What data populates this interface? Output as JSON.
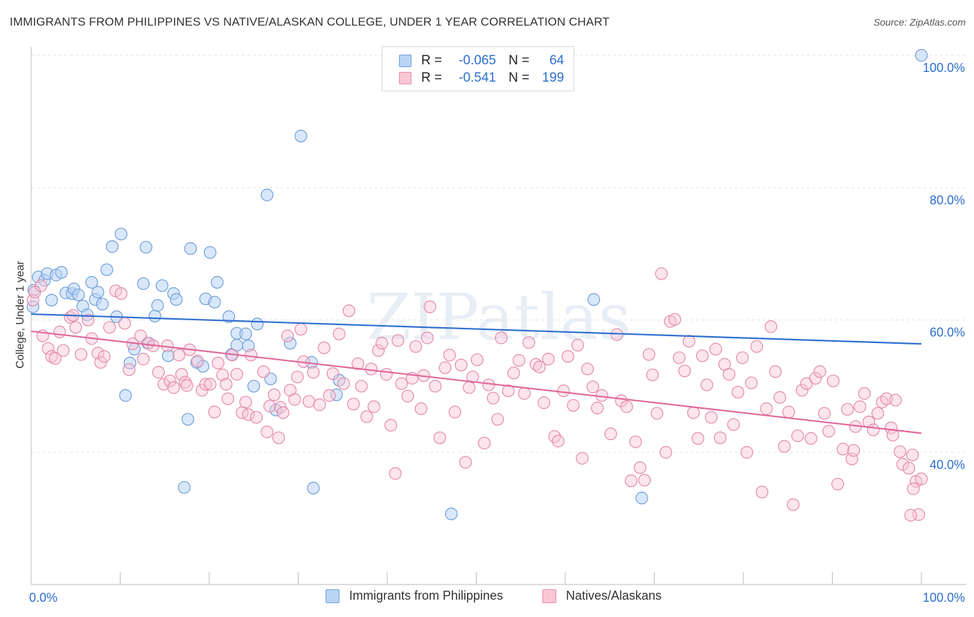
{
  "title": "IMMIGRANTS FROM PHILIPPINES VS NATIVE/ALASKAN COLLEGE, UNDER 1 YEAR CORRELATION CHART",
  "source": "Source: ZipAtlas.com",
  "watermark": "ZIPatlas",
  "legend": {
    "rows": [
      {
        "r_label": "R =",
        "r_value": "-0.065",
        "n_label": "N =",
        "n_value": "64"
      },
      {
        "r_label": "R =",
        "r_value": "-0.541",
        "n_label": "N =",
        "n_value": "199"
      }
    ]
  },
  "bottom_legend": {
    "series1": "Immigrants from Philippines",
    "series2": "Natives/Alaskans"
  },
  "chart_data": {
    "type": "scatter",
    "title": "IMMIGRANTS FROM PHILIPPINES VS NATIVE/ALASKAN COLLEGE, UNDER 1 YEAR CORRELATION CHART",
    "xlabel": "",
    "ylabel": "College, Under 1 year",
    "xlim": [
      0,
      100
    ],
    "ylim": [
      20,
      102
    ],
    "x_tick_labels": [
      "0.0%",
      "100.0%"
    ],
    "y_ticks": [
      40,
      60,
      80,
      100
    ],
    "y_tick_labels": [
      "40.0%",
      "60.0%",
      "80.0%",
      "100.0%"
    ],
    "colors": {
      "series1": "#6f9fd8",
      "series1_fill": "#b9d4f5",
      "series1_line": "#2e6fcf",
      "series2": "#e48aaa",
      "series2_fill": "#f9c6d6",
      "series2_line": "#e0699a",
      "tick_label": "#2e6fcf"
    },
    "series": [
      {
        "name": "Immigrants from Philippines",
        "trend": [
          [
            0,
            60.9
          ],
          [
            100,
            56.4
          ]
        ],
        "points": [
          [
            0.3,
            64.5
          ],
          [
            0.8,
            66.5
          ],
          [
            1.5,
            66.0
          ],
          [
            1.8,
            67.0
          ],
          [
            2.3,
            63.0
          ],
          [
            2.8,
            66.8
          ],
          [
            3.4,
            67.2
          ],
          [
            3.9,
            64.1
          ],
          [
            4.6,
            64.0
          ],
          [
            4.8,
            64.7
          ],
          [
            5.3,
            63.8
          ],
          [
            5.8,
            62.1
          ],
          [
            6.3,
            60.8
          ],
          [
            6.8,
            65.7
          ],
          [
            7.2,
            63.1
          ],
          [
            7.5,
            64.2
          ],
          [
            8.0,
            62.4
          ],
          [
            8.5,
            67.6
          ],
          [
            9.1,
            71.1
          ],
          [
            9.6,
            60.5
          ],
          [
            10.1,
            73.0
          ],
          [
            10.6,
            48.6
          ],
          [
            11.1,
            53.5
          ],
          [
            11.6,
            55.6
          ],
          [
            12.6,
            65.5
          ],
          [
            12.9,
            71.0
          ],
          [
            13.1,
            56.5
          ],
          [
            13.9,
            60.6
          ],
          [
            14.2,
            62.2
          ],
          [
            14.7,
            65.2
          ],
          [
            15.4,
            54.6
          ],
          [
            16.0,
            64.0
          ],
          [
            16.3,
            63.1
          ],
          [
            17.2,
            34.7
          ],
          [
            17.6,
            45.0
          ],
          [
            17.9,
            70.8
          ],
          [
            18.6,
            53.6
          ],
          [
            19.3,
            53.0
          ],
          [
            19.6,
            63.2
          ],
          [
            20.1,
            70.2
          ],
          [
            20.6,
            62.7
          ],
          [
            20.9,
            65.7
          ],
          [
            22.2,
            60.5
          ],
          [
            22.5,
            54.8
          ],
          [
            23.1,
            58.0
          ],
          [
            23.1,
            56.2
          ],
          [
            24.1,
            57.9
          ],
          [
            24.4,
            56.1
          ],
          [
            25.0,
            50.0
          ],
          [
            25.4,
            59.4
          ],
          [
            26.5,
            78.9
          ],
          [
            26.9,
            51.1
          ],
          [
            27.5,
            46.4
          ],
          [
            29.1,
            56.5
          ],
          [
            30.3,
            87.8
          ],
          [
            31.5,
            53.6
          ],
          [
            31.7,
            34.6
          ],
          [
            34.3,
            48.7
          ],
          [
            34.6,
            50.9
          ],
          [
            47.2,
            30.7
          ],
          [
            63.2,
            63.1
          ],
          [
            68.6,
            33.1
          ],
          [
            100.0,
            100.0
          ],
          [
            0.2,
            62.0
          ]
        ]
      },
      {
        "name": "Natives/Alaskans",
        "trend": [
          [
            0,
            58.3
          ],
          [
            100,
            42.9
          ]
        ],
        "points": [
          [
            0.2,
            63.0
          ],
          [
            0.4,
            64.2
          ],
          [
            1.1,
            65.2
          ],
          [
            1.3,
            57.6
          ],
          [
            1.9,
            55.7
          ],
          [
            2.3,
            54.5
          ],
          [
            2.7,
            54.2
          ],
          [
            3.2,
            58.2
          ],
          [
            3.6,
            55.4
          ],
          [
            4.4,
            60.4
          ],
          [
            4.7,
            60.7
          ],
          [
            5.0,
            58.9
          ],
          [
            5.6,
            54.8
          ],
          [
            6.4,
            60.0
          ],
          [
            6.8,
            57.2
          ],
          [
            7.5,
            55.0
          ],
          [
            7.8,
            53.6
          ],
          [
            8.2,
            54.5
          ],
          [
            8.8,
            58.9
          ],
          [
            9.5,
            64.4
          ],
          [
            10.1,
            64.0
          ],
          [
            10.5,
            59.5
          ],
          [
            11.0,
            52.5
          ],
          [
            11.4,
            56.4
          ],
          [
            12.3,
            57.6
          ],
          [
            12.6,
            54.1
          ],
          [
            13.2,
            56.5
          ],
          [
            13.7,
            56.1
          ],
          [
            14.3,
            52.1
          ],
          [
            14.9,
            50.3
          ],
          [
            15.3,
            56.1
          ],
          [
            15.6,
            50.8
          ],
          [
            16.0,
            49.8
          ],
          [
            16.6,
            54.7
          ],
          [
            16.9,
            51.8
          ],
          [
            17.3,
            50.6
          ],
          [
            17.5,
            50.1
          ],
          [
            17.8,
            55.5
          ],
          [
            18.7,
            53.8
          ],
          [
            19.2,
            49.4
          ],
          [
            19.6,
            50.3
          ],
          [
            20.1,
            50.3
          ],
          [
            20.6,
            46.1
          ],
          [
            21.0,
            53.5
          ],
          [
            21.5,
            51.7
          ],
          [
            21.9,
            50.3
          ],
          [
            22.1,
            48.1
          ],
          [
            22.6,
            54.7
          ],
          [
            23.1,
            51.8
          ],
          [
            23.7,
            46.0
          ],
          [
            24.1,
            47.6
          ],
          [
            24.4,
            45.7
          ],
          [
            24.7,
            54.7
          ],
          [
            25.3,
            45.3
          ],
          [
            26.1,
            52.2
          ],
          [
            26.5,
            43.1
          ],
          [
            26.8,
            47.0
          ],
          [
            27.3,
            48.7
          ],
          [
            27.8,
            42.2
          ],
          [
            28.0,
            46.8
          ],
          [
            28.3,
            46.0
          ],
          [
            28.8,
            57.6
          ],
          [
            29.1,
            49.4
          ],
          [
            29.6,
            48.0
          ],
          [
            29.9,
            51.4
          ],
          [
            30.3,
            58.6
          ],
          [
            30.6,
            53.7
          ],
          [
            31.2,
            47.7
          ],
          [
            31.7,
            52.1
          ],
          [
            32.4,
            47.2
          ],
          [
            32.9,
            55.8
          ],
          [
            33.5,
            48.6
          ],
          [
            33.9,
            51.9
          ],
          [
            34.6,
            57.9
          ],
          [
            35.1,
            50.4
          ],
          [
            35.7,
            61.4
          ],
          [
            36.2,
            47.3
          ],
          [
            36.7,
            53.4
          ],
          [
            37.1,
            50.0
          ],
          [
            37.7,
            45.4
          ],
          [
            38.2,
            52.6
          ],
          [
            38.5,
            46.9
          ],
          [
            39.0,
            55.4
          ],
          [
            39.4,
            56.5
          ],
          [
            39.9,
            51.8
          ],
          [
            40.4,
            44.1
          ],
          [
            40.9,
            36.8
          ],
          [
            41.2,
            56.9
          ],
          [
            41.6,
            50.4
          ],
          [
            42.3,
            48.5
          ],
          [
            42.8,
            51.2
          ],
          [
            43.2,
            56.0
          ],
          [
            43.8,
            46.6
          ],
          [
            44.1,
            51.6
          ],
          [
            44.5,
            57.3
          ],
          [
            44.8,
            62.0
          ],
          [
            45.4,
            50.0
          ],
          [
            45.9,
            42.2
          ],
          [
            46.5,
            52.8
          ],
          [
            47.0,
            54.7
          ],
          [
            47.6,
            46.1
          ],
          [
            48.3,
            53.2
          ],
          [
            48.8,
            38.5
          ],
          [
            49.2,
            49.8
          ],
          [
            49.6,
            51.4
          ],
          [
            50.1,
            54.0
          ],
          [
            50.9,
            41.4
          ],
          [
            51.4,
            50.2
          ],
          [
            51.9,
            48.2
          ],
          [
            52.4,
            45.0
          ],
          [
            52.8,
            57.3
          ],
          [
            53.6,
            49.3
          ],
          [
            54.2,
            52.0
          ],
          [
            54.8,
            53.9
          ],
          [
            55.4,
            48.9
          ],
          [
            55.9,
            56.6
          ],
          [
            56.7,
            53.3
          ],
          [
            57.1,
            52.9
          ],
          [
            57.6,
            47.5
          ],
          [
            58.1,
            54.1
          ],
          [
            58.8,
            42.4
          ],
          [
            59.2,
            41.7
          ],
          [
            59.8,
            49.3
          ],
          [
            60.3,
            54.5
          ],
          [
            60.9,
            47.1
          ],
          [
            61.4,
            56.2
          ],
          [
            61.9,
            39.1
          ],
          [
            62.5,
            52.6
          ],
          [
            63.1,
            49.9
          ],
          [
            63.6,
            46.7
          ],
          [
            64.1,
            48.6
          ],
          [
            65.1,
            42.8
          ],
          [
            65.8,
            57.8
          ],
          [
            66.3,
            47.8
          ],
          [
            66.9,
            46.9
          ],
          [
            67.4,
            35.7
          ],
          [
            67.9,
            41.6
          ],
          [
            68.4,
            37.7
          ],
          [
            68.9,
            35.8
          ],
          [
            69.4,
            54.8
          ],
          [
            69.8,
            51.7
          ],
          [
            70.3,
            45.9
          ],
          [
            70.8,
            67.0
          ],
          [
            71.3,
            40.0
          ],
          [
            71.8,
            59.8
          ],
          [
            72.3,
            60.1
          ],
          [
            72.8,
            54.3
          ],
          [
            73.4,
            52.3
          ],
          [
            73.9,
            56.8
          ],
          [
            74.4,
            46.0
          ],
          [
            74.9,
            42.1
          ],
          [
            75.4,
            54.6
          ],
          [
            75.9,
            50.2
          ],
          [
            76.4,
            45.3
          ],
          [
            76.9,
            55.6
          ],
          [
            77.4,
            42.2
          ],
          [
            77.9,
            53.3
          ],
          [
            78.4,
            51.8
          ],
          [
            78.9,
            44.2
          ],
          [
            79.4,
            49.1
          ],
          [
            79.9,
            54.3
          ],
          [
            80.4,
            40.0
          ],
          [
            80.9,
            50.5
          ],
          [
            81.5,
            56.0
          ],
          [
            82.1,
            34.0
          ],
          [
            82.6,
            46.6
          ],
          [
            83.1,
            59.0
          ],
          [
            83.6,
            52.2
          ],
          [
            84.1,
            48.3
          ],
          [
            84.6,
            40.9
          ],
          [
            85.1,
            46.1
          ],
          [
            85.6,
            32.1
          ],
          [
            86.1,
            42.5
          ],
          [
            86.6,
            49.4
          ],
          [
            87.1,
            50.4
          ],
          [
            87.6,
            42.1
          ],
          [
            88.1,
            51.2
          ],
          [
            88.6,
            52.2
          ],
          [
            89.1,
            45.9
          ],
          [
            89.6,
            43.2
          ],
          [
            90.1,
            50.8
          ],
          [
            90.6,
            35.2
          ],
          [
            91.2,
            40.5
          ],
          [
            91.7,
            46.5
          ],
          [
            92.2,
            39.0
          ],
          [
            92.6,
            43.9
          ],
          [
            93.1,
            46.9
          ],
          [
            93.6,
            48.9
          ],
          [
            94.1,
            44.6
          ],
          [
            94.6,
            43.4
          ],
          [
            95.1,
            45.9
          ],
          [
            95.6,
            47.6
          ],
          [
            96.1,
            48.1
          ],
          [
            96.6,
            43.7
          ],
          [
            96.8,
            42.6
          ],
          [
            97.1,
            47.9
          ],
          [
            97.6,
            40.1
          ],
          [
            97.9,
            38.2
          ],
          [
            98.6,
            37.6
          ],
          [
            99.0,
            39.6
          ],
          [
            99.4,
            35.6
          ],
          [
            99.7,
            30.6
          ],
          [
            100.0,
            36.0
          ],
          [
            98.8,
            30.5
          ],
          [
            99.1,
            34.5
          ],
          [
            92.4,
            40.3
          ]
        ]
      }
    ]
  }
}
